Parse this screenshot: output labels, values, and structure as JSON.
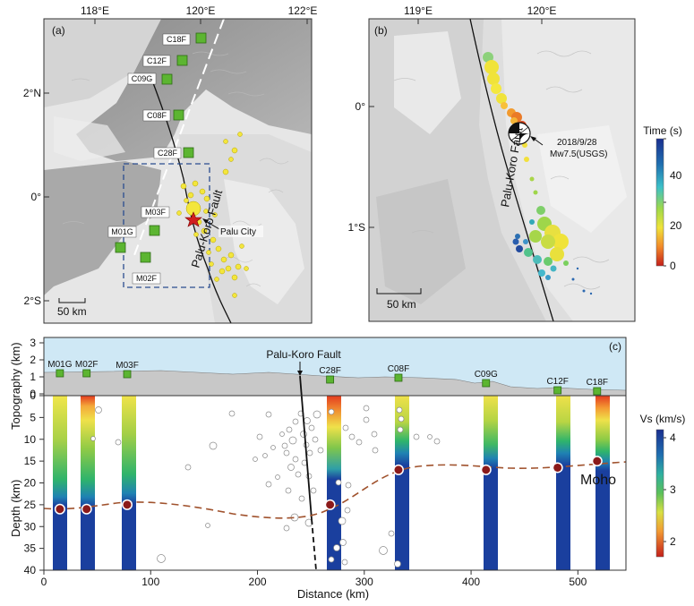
{
  "panel_a": {
    "tag": "(a)",
    "lon_ticks": [
      "118°E",
      "120°E",
      "122°E"
    ],
    "lat_ticks": [
      "2°N",
      "0°",
      "2°S"
    ],
    "scale": "50 km",
    "fault": "Palu-Koro Fault",
    "city": "Palu City",
    "stations": [
      "C18F",
      "C12F",
      "C09G",
      "C08F",
      "C28F",
      "M03F",
      "M01G",
      "M02F"
    ]
  },
  "panel_b": {
    "tag": "(b)",
    "lon_ticks": [
      "119°E",
      "120°E"
    ],
    "lat_ticks": [
      "0°",
      "1°S"
    ],
    "scale": "50 km",
    "fault": "Palu-Koro Fault",
    "event_line1": "2018/9/28",
    "event_line2": "Mw7.5(USGS)"
  },
  "time_bar": {
    "title": "Time (s)",
    "ticks": [
      "40",
      "20",
      "0"
    ]
  },
  "panel_c": {
    "tag": "(c)",
    "fault": "Palu-Koro Fault",
    "topo_ylabel": "Topography (km)",
    "depth_ylabel": "Depth (km)",
    "xlabel": "Distance (km)",
    "topo_ticks": [
      "3",
      "2",
      "1",
      "0"
    ],
    "depth_ticks": [
      "0",
      "5",
      "10",
      "15",
      "20",
      "25",
      "30",
      "35",
      "40"
    ],
    "x_ticks": [
      "0",
      "100",
      "200",
      "300",
      "400",
      "500"
    ],
    "moho": "Moho",
    "stations": [
      "M01G",
      "M02F",
      "M03F",
      "C28F",
      "C08F",
      "C09G",
      "C12F",
      "C18F"
    ],
    "station_x_km": [
      15,
      40,
      78,
      268,
      332,
      414,
      481,
      518
    ],
    "moho_depth_km": [
      26,
      26,
      25,
      25,
      17,
      17,
      16.5,
      15
    ]
  },
  "vs_bar": {
    "title": "Vs (km/s)",
    "ticks": [
      "4",
      "3",
      "2"
    ]
  },
  "colors": {
    "green": "#5cb531",
    "moho": "#a0522d",
    "sky": "#cfe8f5",
    "terrain": "#c9c9c9"
  }
}
